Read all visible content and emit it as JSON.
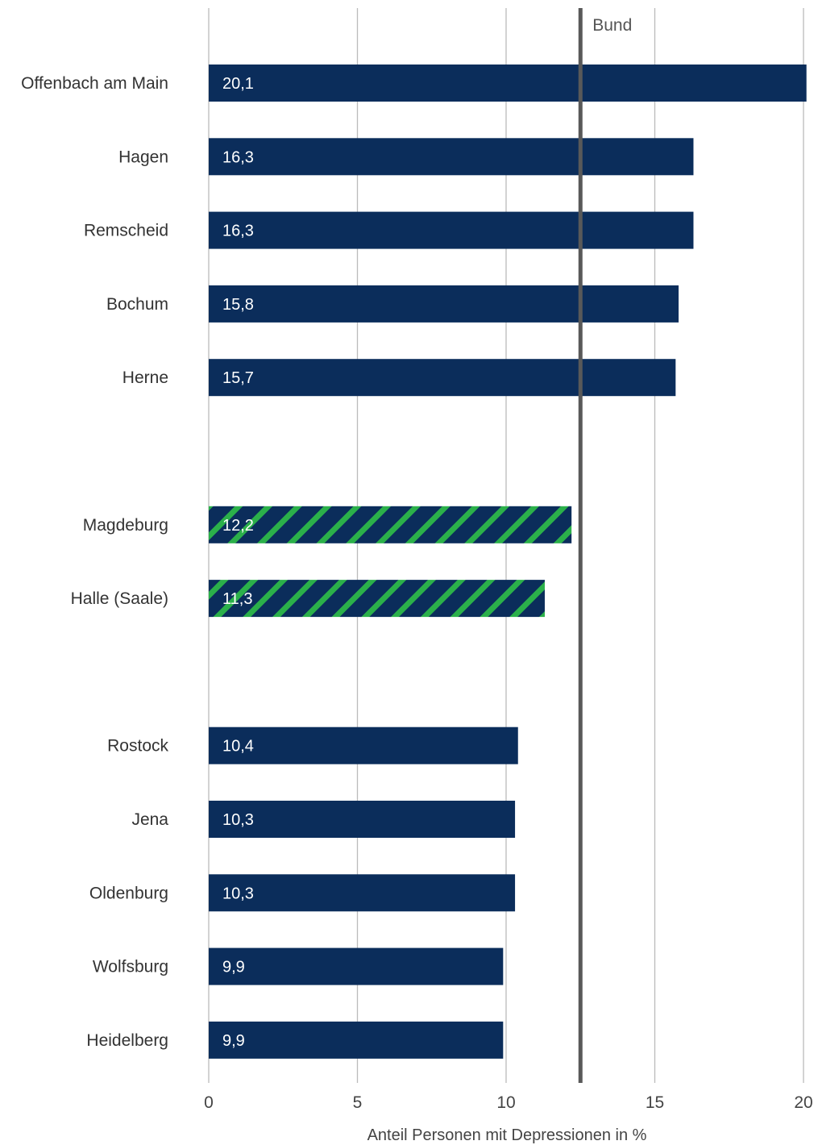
{
  "chart_data": {
    "type": "bar",
    "orientation": "horizontal",
    "title": "",
    "xlabel": "Anteil Personen mit Depressionen in %",
    "ylabel": "",
    "xlim": [
      0,
      20
    ],
    "xticks": [
      "0",
      "5",
      "10",
      "15",
      "20"
    ],
    "grid": "vertical",
    "categories": [
      "Offenbach am Main",
      "Hagen",
      "Remscheid",
      "Bochum",
      "Herne",
      "Magdeburg",
      "Halle (Saale)",
      "Rostock",
      "Jena",
      "Oldenburg",
      "Wolfsburg",
      "Heidelberg"
    ],
    "values": [
      20.1,
      16.3,
      16.3,
      15.8,
      15.7,
      12.2,
      11.3,
      10.4,
      10.3,
      10.3,
      9.9,
      9.9
    ],
    "value_labels": [
      "20,1",
      "16,3",
      "16,3",
      "15,8",
      "15,7",
      "12,2",
      "11,3",
      "10,4",
      "10,3",
      "10,3",
      "9,9",
      "9,9"
    ],
    "groups": [
      {
        "style": "solid",
        "categories": [
          "Offenbach am Main",
          "Hagen",
          "Remscheid",
          "Bochum",
          "Herne"
        ]
      },
      {
        "style": "hatched",
        "categories": [
          "Magdeburg",
          "Halle (Saale)"
        ]
      },
      {
        "style": "solid",
        "categories": [
          "Rostock",
          "Jena",
          "Oldenburg",
          "Wolfsburg",
          "Heidelberg"
        ]
      }
    ],
    "reference_line": {
      "label": "Bund",
      "value": 12.5
    },
    "colors": {
      "bar": "#0b2d5b",
      "hatch": "#2bb04a",
      "grid": "#bbbbbb",
      "reference": "#595959"
    }
  }
}
